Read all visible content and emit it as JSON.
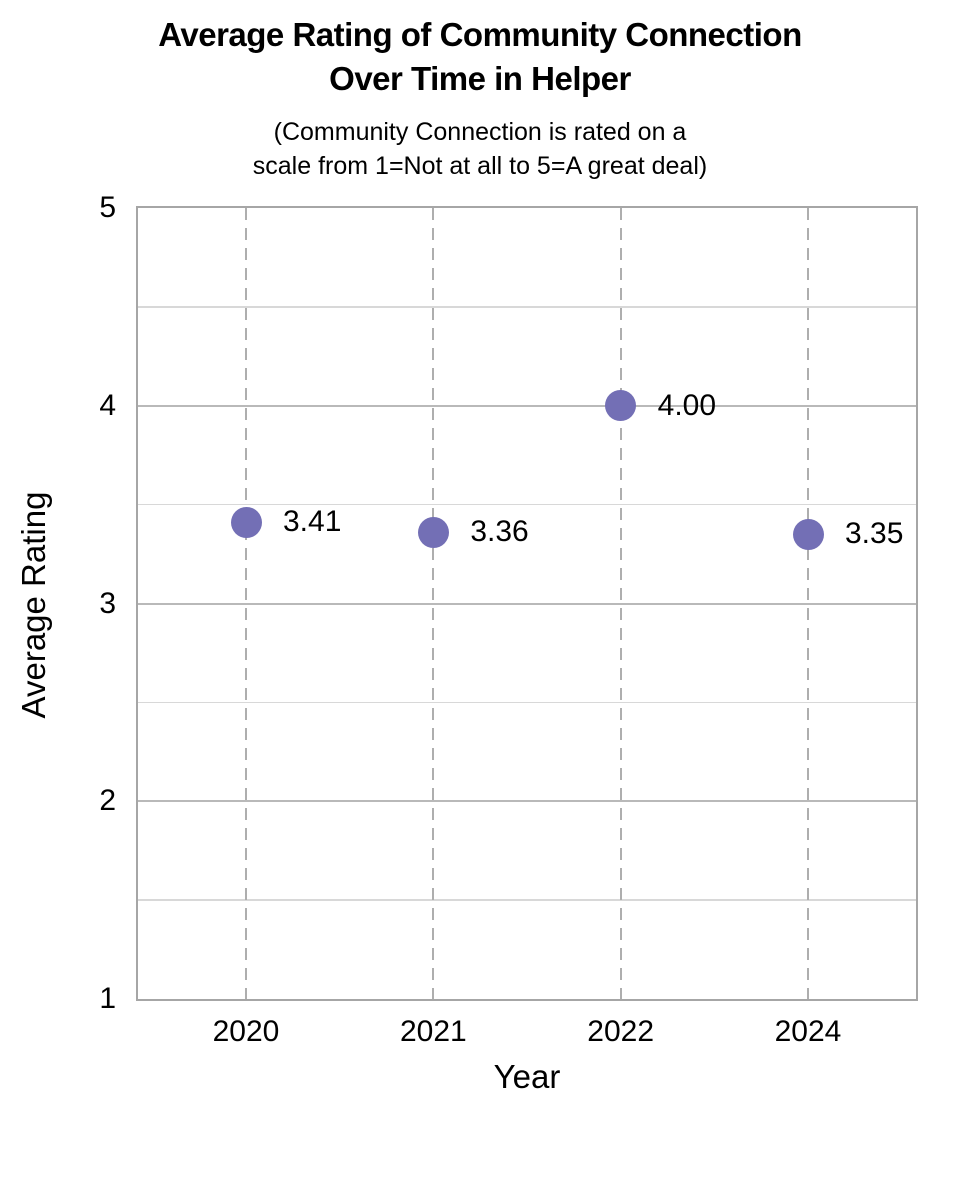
{
  "chart_data": {
    "type": "scatter",
    "title_lines": [
      "Average Rating of Community Connection",
      "Over Time in Helper"
    ],
    "subtitle_lines": [
      "(Community Connection is rated on a",
      "scale from 1=Not at all to 5=A great deal)"
    ],
    "xlabel": "Year",
    "ylabel": "Average Rating",
    "categories": [
      "2020",
      "2021",
      "2022",
      "2024"
    ],
    "values": [
      3.41,
      3.36,
      4.0,
      3.35
    ],
    "point_labels": [
      "3.41",
      "3.36",
      "4.00",
      "3.35"
    ],
    "ylim": [
      1,
      5
    ],
    "y_ticks": [
      5,
      4,
      3,
      2,
      1
    ],
    "gridline_interval": 0.5,
    "grid_on": true,
    "legend_position": "none",
    "colors": {
      "marker": "#736FB5",
      "h_gridline_major": "#b9b9b9",
      "h_gridline_minor": "#d8d8d8",
      "v_gridline_dashed": "#aeaeae",
      "plot_border": "#a6a6a6",
      "text": "#000000"
    }
  }
}
